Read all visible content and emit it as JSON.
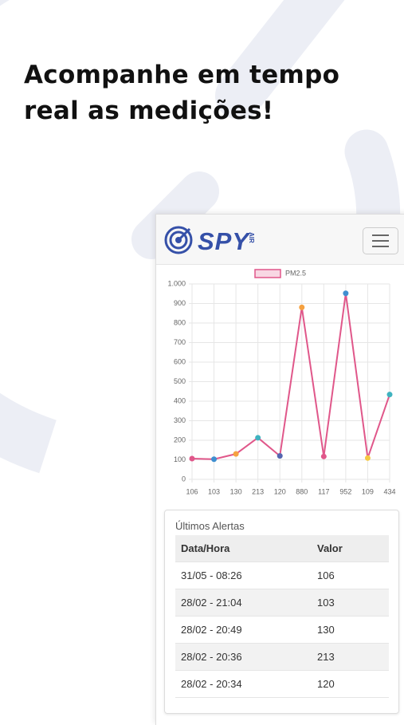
{
  "headline": [
    "Acompanhe em tempo",
    "real as medições!"
  ],
  "logo": {
    "text": "SPY",
    "subtext": "AIR"
  },
  "chart_data": {
    "type": "line",
    "categories": [
      "106",
      "103",
      "130",
      "213",
      "120",
      "880",
      "117",
      "952",
      "109",
      "434"
    ],
    "series": [
      {
        "name": "PM2.5",
        "color": "#e0578a",
        "values": [
          106,
          103,
          130,
          213,
          120,
          880,
          117,
          952,
          109,
          434
        ]
      }
    ],
    "point_colors": [
      "#e0578a",
      "#3f8fd0",
      "#f5a140",
      "#3fb3c0",
      "#5566b0",
      "#f5a140",
      "#e0578a",
      "#3f8fd0",
      "#f5c842",
      "#3fb3c0"
    ],
    "ylim": [
      0,
      1000
    ],
    "yticks": [
      0,
      100,
      200,
      300,
      400,
      500,
      600,
      700,
      800,
      900,
      {
        "value": 1000,
        "label": "1.000"
      }
    ],
    "grid": true,
    "legend": "top"
  },
  "table": {
    "title": "Últimos Alertas",
    "headers": [
      "Data/Hora",
      "Valor"
    ],
    "rows": [
      [
        "31/05 - 08:26",
        "106"
      ],
      [
        "28/02 - 21:04",
        "103"
      ],
      [
        "28/02 - 20:49",
        "130"
      ],
      [
        "28/02 - 20:36",
        "213"
      ],
      [
        "28/02 - 20:34",
        "120"
      ]
    ]
  }
}
